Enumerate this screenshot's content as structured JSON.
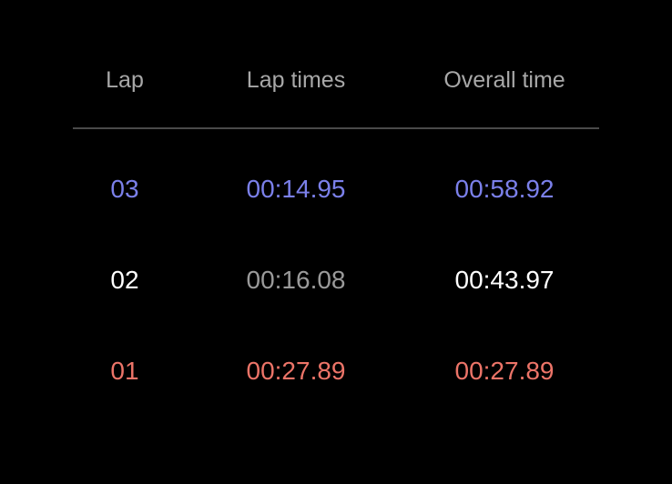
{
  "headers": {
    "lap": "Lap",
    "lap_times": "Lap times",
    "overall_time": "Overall time"
  },
  "colors": {
    "background": "#000000",
    "header_text": "#a8a8a8",
    "divider": "#4a4a4a",
    "fastest": "#7b80ea",
    "slowest": "#ec7468",
    "normal_primary": "#ffffff",
    "normal_secondary": "#9a9a9a"
  },
  "laps": [
    {
      "lap": "03",
      "lap_time": "00:14.95",
      "overall_time": "00:58.92"
    },
    {
      "lap": "02",
      "lap_time": "00:16.08",
      "overall_time": "00:43.97"
    },
    {
      "lap": "01",
      "lap_time": "00:27.89",
      "overall_time": "00:27.89"
    }
  ]
}
